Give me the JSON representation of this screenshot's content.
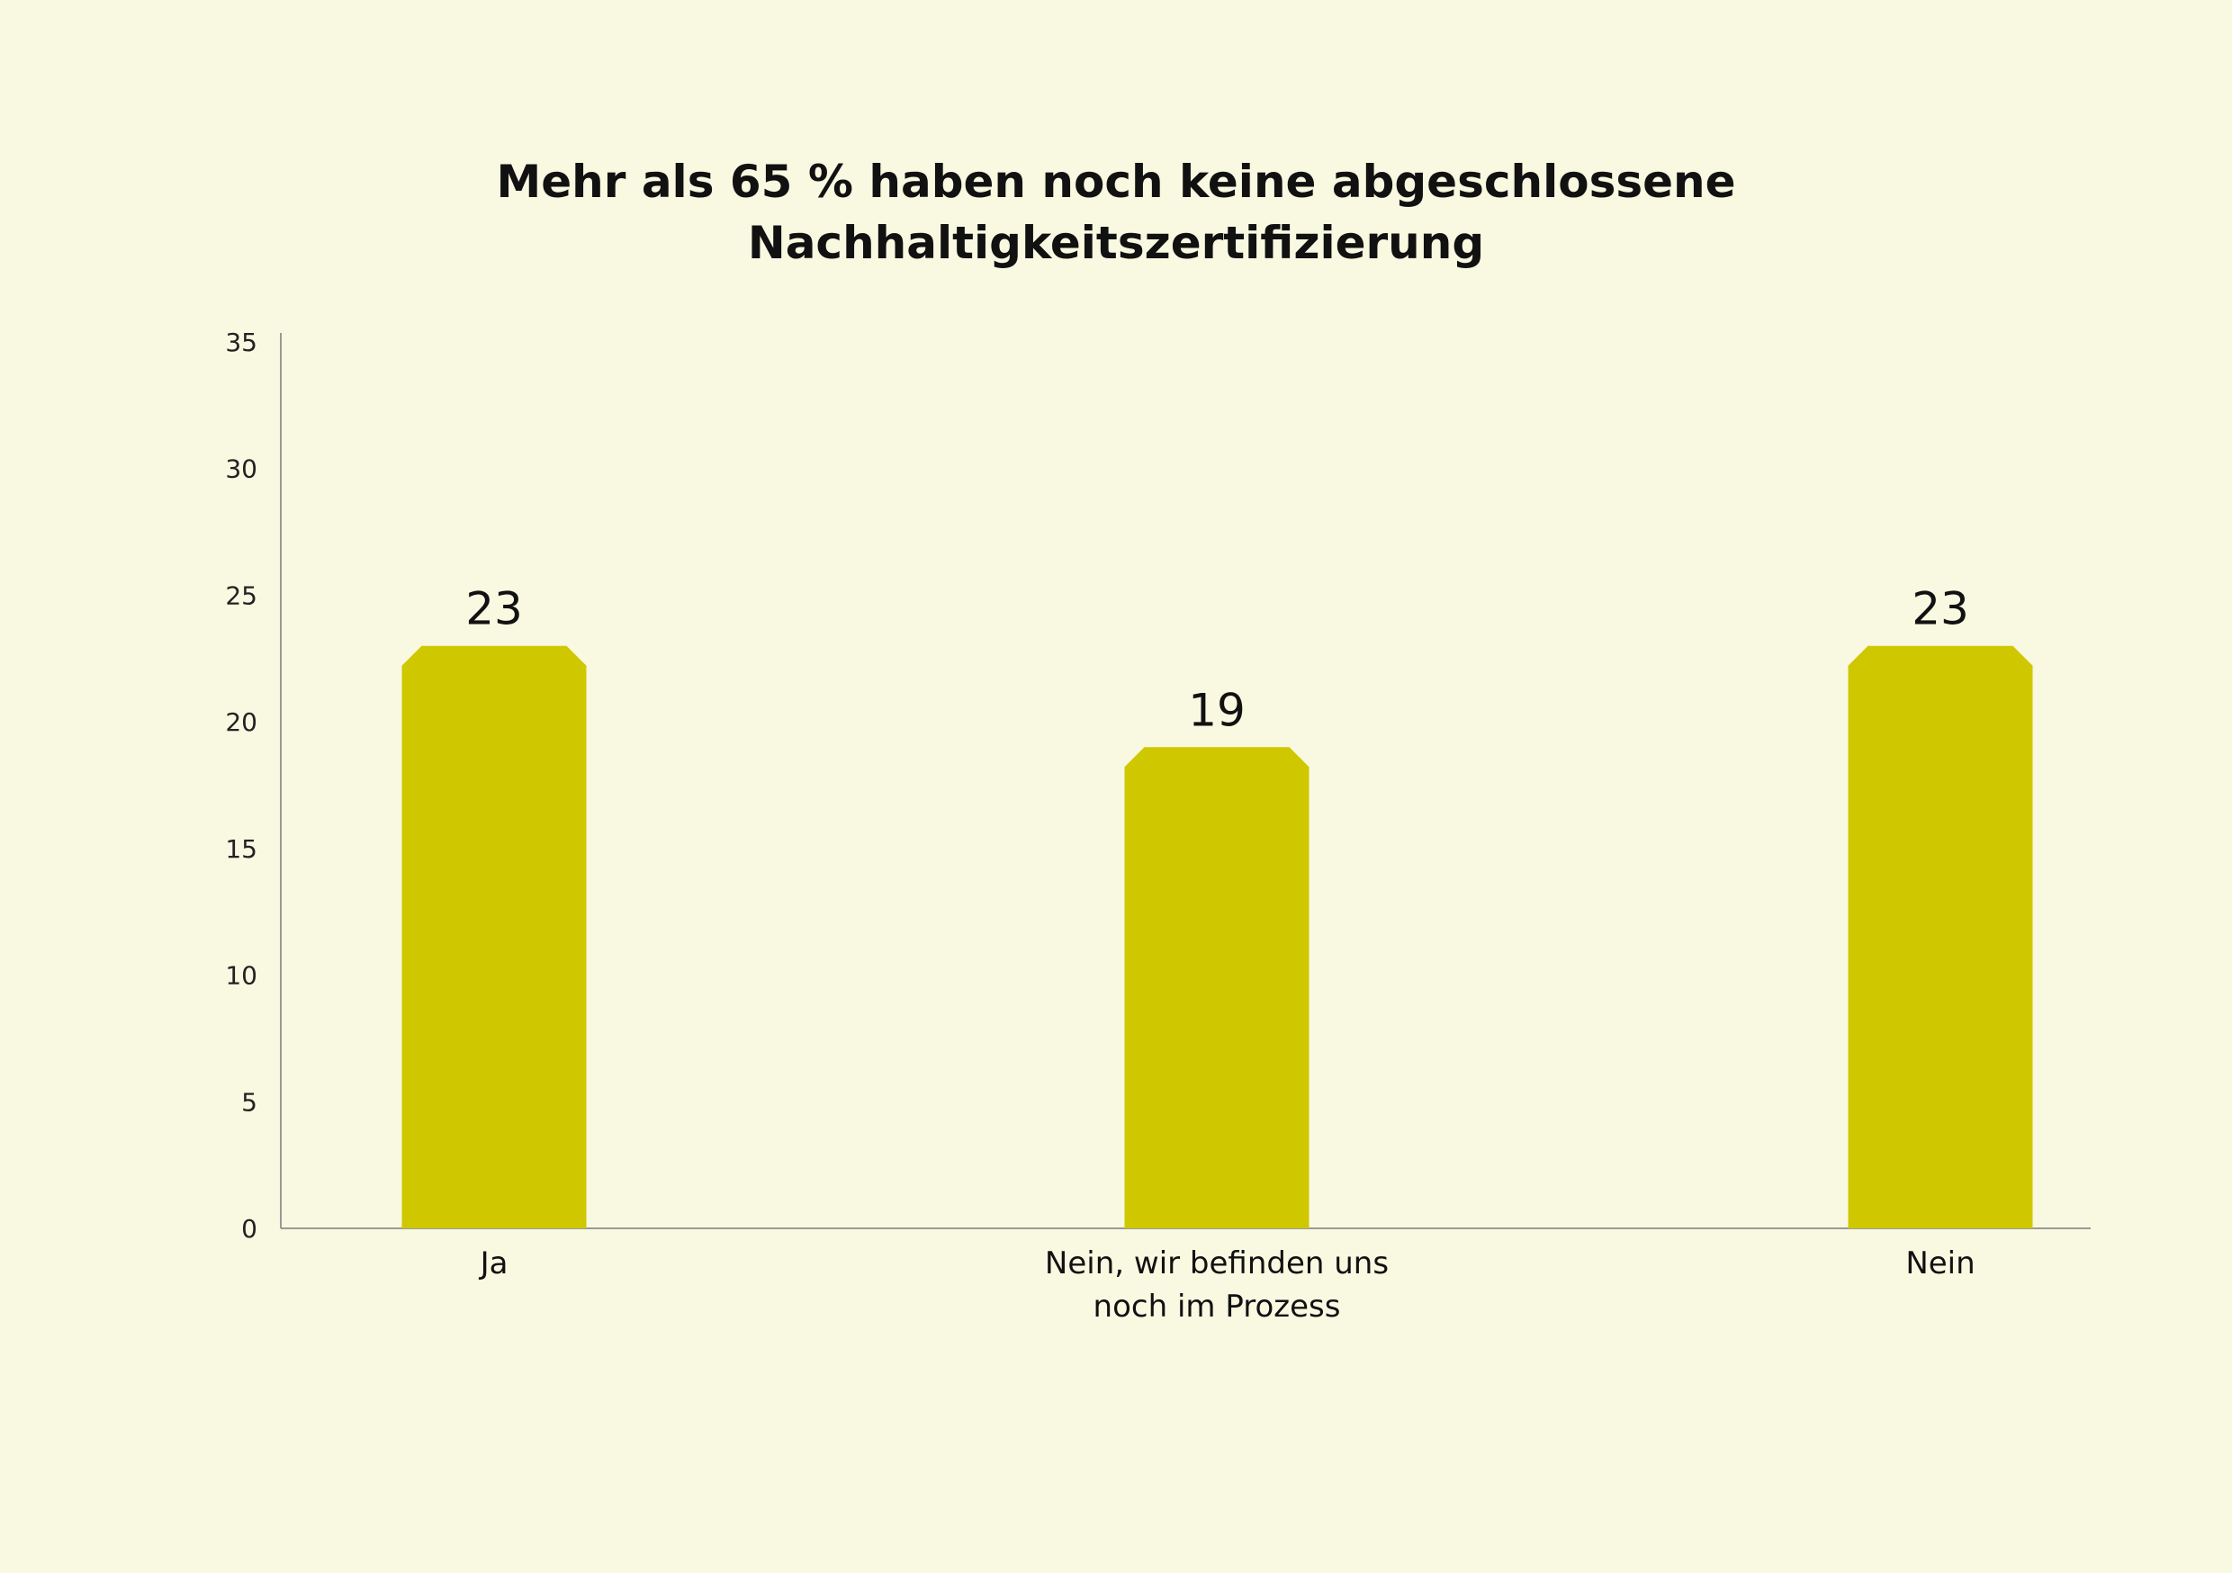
{
  "chart_data": {
    "type": "bar",
    "title": "Mehr als 65 % haben noch keine abgeschlossene Nachhaltigkeitszertifizierung",
    "categories": [
      "Ja",
      "Nein, wir befinden uns noch im Prozess",
      "Nein"
    ],
    "values": [
      23,
      19,
      23
    ],
    "color": "#cfc800",
    "ylim": [
      0,
      35
    ],
    "yticks": [
      0,
      5,
      10,
      15,
      20,
      25,
      30,
      35
    ],
    "grid": false
  }
}
